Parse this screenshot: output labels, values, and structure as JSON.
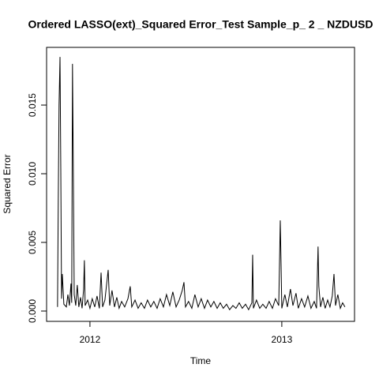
{
  "chart_data": {
    "type": "line",
    "title": "Ordered LASSO(ext)_Squared Error_Test Sample_p_ 2 _ NZDUSD",
    "x_label": "Time",
    "y_label": "Squared Error",
    "color": "#000000",
    "xlim": [
      2011.774,
      2013.379
    ],
    "xticks": [
      2012,
      2013
    ],
    "ylim": [
      -0.00075,
      0.0192
    ],
    "yticks": [
      {
        "value": 0,
        "label": "0.000"
      },
      0.005,
      {
        "value": 0.01,
        "label": "0.010"
      },
      0.015
    ],
    "x": [
      2011.831,
      2011.835,
      2011.839,
      2011.844,
      2011.848,
      2011.852,
      2011.856,
      2011.864,
      2011.877,
      2011.885,
      2011.893,
      2011.901,
      2011.905,
      2011.909,
      2011.914,
      2011.918,
      2011.926,
      2011.934,
      2011.942,
      2011.951,
      2011.959,
      2011.967,
      2011.971,
      2011.975,
      2011.988,
      2012.0,
      2012.012,
      2012.025,
      2012.037,
      2012.049,
      2012.058,
      2012.066,
      2012.078,
      2012.095,
      2012.103,
      2012.115,
      2012.128,
      2012.14,
      2012.152,
      2012.165,
      2012.181,
      2012.198,
      2012.21,
      2012.218,
      2012.235,
      2012.251,
      2012.267,
      2012.284,
      2012.3,
      2012.317,
      2012.333,
      2012.35,
      2012.366,
      2012.383,
      2012.399,
      2012.416,
      2012.432,
      2012.449,
      2012.465,
      2012.481,
      2012.49,
      2012.498,
      2012.514,
      2012.531,
      2012.547,
      2012.564,
      2012.58,
      2012.597,
      2012.613,
      2012.63,
      2012.646,
      2012.663,
      2012.679,
      2012.695,
      2012.712,
      2012.728,
      2012.745,
      2012.761,
      2012.778,
      2012.794,
      2012.811,
      2012.827,
      2012.844,
      2012.848,
      2012.852,
      2012.868,
      2012.885,
      2012.901,
      2012.918,
      2012.934,
      2012.951,
      2012.967,
      2012.984,
      2012.992,
      2012.996,
      2013.0,
      2013.016,
      2013.029,
      2013.045,
      2013.058,
      2013.074,
      2013.086,
      2013.103,
      2013.119,
      2013.136,
      2013.152,
      2013.169,
      2013.181,
      2013.189,
      2013.193,
      2013.202,
      2013.214,
      2013.226,
      2013.239,
      2013.251,
      2013.263,
      2013.272,
      2013.28,
      2013.292,
      2013.305,
      2013.317,
      2013.329
    ],
    "values": [
      0.0003,
      0.0082,
      0.015,
      0.0185,
      0.0104,
      0.0009,
      0.0027,
      0.0005,
      0.0003,
      0.0012,
      0.0004,
      0.002,
      0.0006,
      0.018,
      0.0092,
      0.0012,
      0.0004,
      0.0019,
      0.0003,
      0.001,
      0.0002,
      0.0016,
      0.0037,
      0.0004,
      0.0008,
      0.0002,
      0.0009,
      0.0003,
      0.0011,
      0.0002,
      0.0028,
      0.0003,
      0.0008,
      0.003,
      0.0004,
      0.0015,
      0.0003,
      0.001,
      0.0002,
      0.0007,
      0.0003,
      0.0009,
      0.0018,
      0.0003,
      0.0008,
      0.0002,
      0.0006,
      0.0002,
      0.0008,
      0.0003,
      0.0007,
      0.0002,
      0.0009,
      0.0003,
      0.0012,
      0.0004,
      0.0014,
      0.0003,
      0.0008,
      0.0015,
      0.0021,
      0.0003,
      0.0007,
      0.0002,
      0.0012,
      0.0003,
      0.0009,
      0.0002,
      0.0008,
      0.0003,
      0.0007,
      0.0002,
      0.0006,
      0.0002,
      0.0005,
      0.0001,
      0.0004,
      0.0002,
      0.0006,
      0.0002,
      0.0005,
      0.0001,
      0.0006,
      0.0041,
      0.0002,
      0.0008,
      0.0002,
      0.0005,
      0.0002,
      0.0007,
      0.0002,
      0.0009,
      0.0004,
      0.0066,
      0.0035,
      0.0002,
      0.0012,
      0.0003,
      0.0016,
      0.0004,
      0.0013,
      0.0002,
      0.0009,
      0.0003,
      0.0011,
      0.0002,
      0.0007,
      0.0002,
      0.0047,
      0.0018,
      0.0003,
      0.001,
      0.0002,
      0.0008,
      0.0003,
      0.0011,
      0.0027,
      0.0004,
      0.0012,
      0.0002,
      0.0006,
      0.0003
    ]
  }
}
